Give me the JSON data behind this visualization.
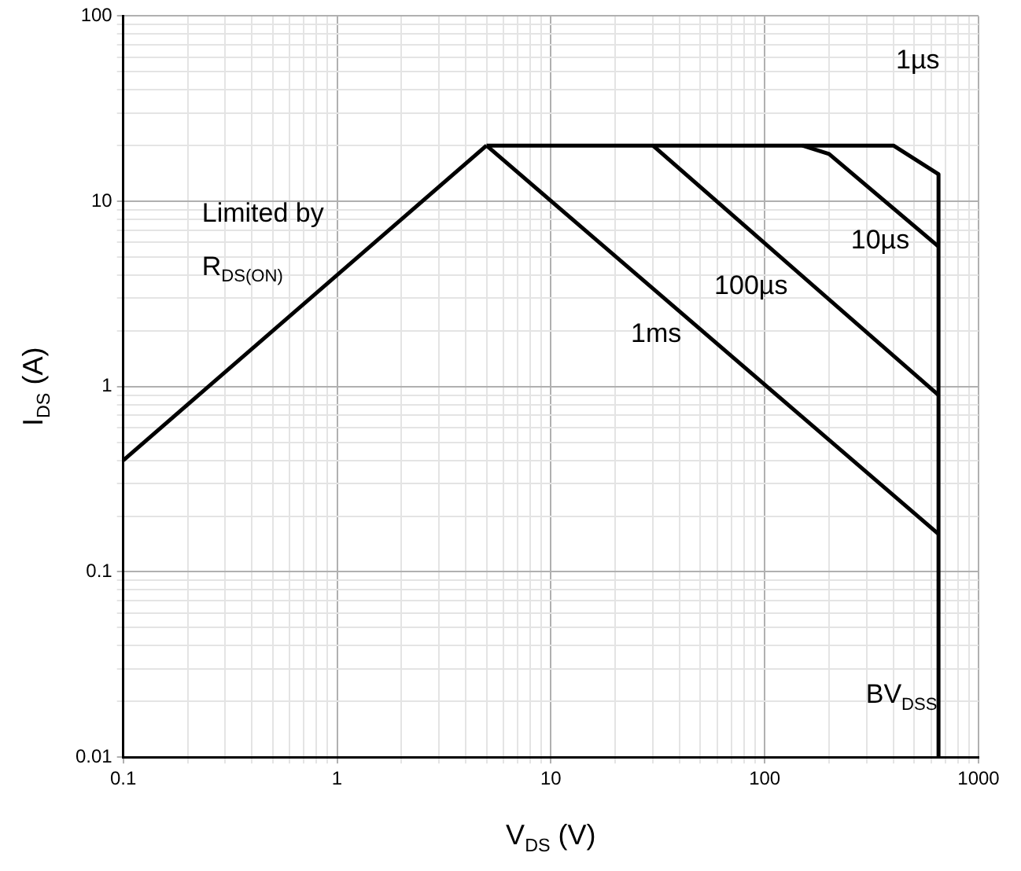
{
  "chart_data": {
    "type": "line",
    "xlabel": "V$_{DS}$ (V)",
    "ylabel": "I$_{DS}$ (A)",
    "log": "xy",
    "grid": true,
    "marker": "none",
    "line_style": "solid",
    "xlim": [
      0.1,
      1000
    ],
    "ylim": [
      0.01,
      100
    ],
    "xticks": [
      0.1,
      {
        "value": 0.2,
        "label": null
      },
      {
        "value": 0.3,
        "label": null
      },
      {
        "value": 0.4,
        "label": null
      },
      {
        "value": 0.5,
        "label": null
      },
      {
        "value": 0.6,
        "label": null
      },
      {
        "value": 0.7,
        "label": null
      },
      {
        "value": 0.8,
        "label": null
      },
      {
        "value": 0.9,
        "label": null
      },
      1,
      {
        "value": 2,
        "label": null
      },
      {
        "value": 3,
        "label": null
      },
      {
        "value": 4,
        "label": null
      },
      {
        "value": 5,
        "label": null
      },
      {
        "value": 6,
        "label": null
      },
      {
        "value": 7,
        "label": null
      },
      {
        "value": 8,
        "label": null
      },
      {
        "value": 9,
        "label": null
      },
      10,
      {
        "value": 20,
        "label": null
      },
      {
        "value": 30,
        "label": null
      },
      {
        "value": 40,
        "label": null
      },
      {
        "value": 50,
        "label": null
      },
      {
        "value": 60,
        "label": null
      },
      {
        "value": 70,
        "label": null
      },
      {
        "value": 80,
        "label": null
      },
      {
        "value": 90,
        "label": null
      },
      100,
      {
        "value": 200,
        "label": null
      },
      {
        "value": 300,
        "label": null
      },
      {
        "value": 400,
        "label": null
      },
      {
        "value": 500,
        "label": null
      },
      {
        "value": 600,
        "label": null
      },
      {
        "value": 700,
        "label": null
      },
      {
        "value": 800,
        "label": null
      },
      {
        "value": 900,
        "label": null
      },
      1000
    ],
    "yticks": [
      0.01,
      {
        "value": 0.02,
        "label": null
      },
      {
        "value": 0.03,
        "label": null
      },
      {
        "value": 0.04,
        "label": null
      },
      {
        "value": 0.05,
        "label": null
      },
      {
        "value": 0.06,
        "label": null
      },
      {
        "value": 0.07,
        "label": null
      },
      {
        "value": 0.08,
        "label": null
      },
      {
        "value": 0.09,
        "label": null
      },
      0.1,
      {
        "value": 0.2,
        "label": null
      },
      {
        "value": 0.3,
        "label": null
      },
      {
        "value": 0.4,
        "label": null
      },
      {
        "value": 0.5,
        "label": null
      },
      {
        "value": 0.6,
        "label": null
      },
      {
        "value": 0.7,
        "label": null
      },
      {
        "value": 0.8,
        "label": null
      },
      {
        "value": 0.9,
        "label": null
      },
      1,
      {
        "value": 2,
        "label": null
      },
      {
        "value": 3,
        "label": null
      },
      {
        "value": 4,
        "label": null
      },
      {
        "value": 5,
        "label": null
      },
      {
        "value": 6,
        "label": null
      },
      {
        "value": 7,
        "label": null
      },
      {
        "value": 8,
        "label": null
      },
      {
        "value": 9,
        "label": null
      },
      10,
      {
        "value": 20,
        "label": null
      },
      {
        "value": 30,
        "label": null
      },
      {
        "value": 40,
        "label": null
      },
      {
        "value": 50,
        "label": null
      },
      {
        "value": 60,
        "label": null
      },
      {
        "value": 70,
        "label": null
      },
      {
        "value": 80,
        "label": null
      },
      {
        "value": 90,
        "label": null
      },
      100
    ],
    "series": [
      {
        "name": "Limited by R$_{DS(ON)}$",
        "color": "#000000",
        "x": [
          0.1,
          5
        ],
        "values": [
          0.4,
          20
        ]
      },
      {
        "name": "1µs",
        "color": "#000000",
        "x": [
          5,
          400,
          650
        ],
        "values": [
          20,
          20,
          14
        ]
      },
      {
        "name": "10µs",
        "color": "#000000",
        "x": [
          150,
          200,
          650
        ],
        "values": [
          20,
          18,
          5.7
        ]
      },
      {
        "name": "100µs",
        "color": "#000000",
        "x": [
          30,
          650
        ],
        "values": [
          20,
          0.9
        ]
      },
      {
        "name": "1ms",
        "color": "#000000",
        "x": [
          5,
          650
        ],
        "values": [
          20,
          0.16
        ]
      },
      {
        "name": "BV$_{DSS}$",
        "color": "#000000",
        "x": [
          650,
          650
        ],
        "values": [
          14,
          0.01
        ]
      }
    ]
  }
}
